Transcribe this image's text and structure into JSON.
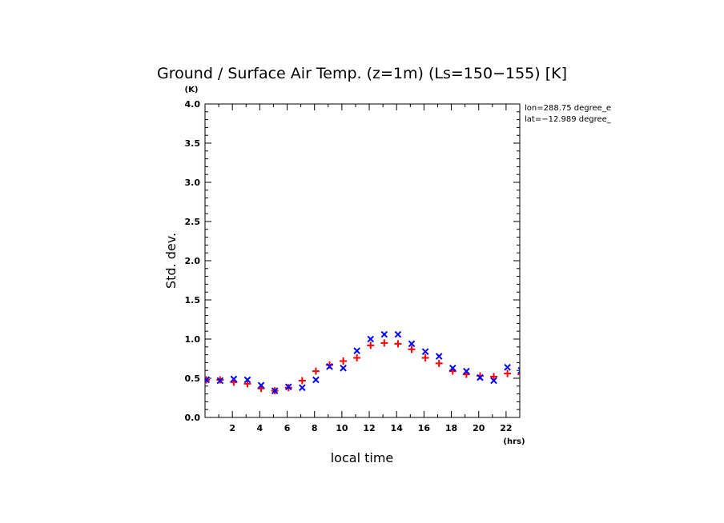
{
  "chart_data": {
    "type": "scatter",
    "title": "Ground / Surface Air Temp. (z=1m) (Ls=150−155) [K]",
    "xlabel": "local time",
    "xunit": "(hrs)",
    "ylabel": "Std. dev.",
    "yunit": "(K)",
    "xlim": [
      0,
      23
    ],
    "ylim": [
      0,
      4.0
    ],
    "x_ticks": [
      "2",
      "4",
      "6",
      "8",
      "10",
      "12",
      "14",
      "16",
      "18",
      "20",
      "22"
    ],
    "y_ticks": [
      "0.0",
      "0.5",
      "1.0",
      "1.5",
      "2.0",
      "2.5",
      "3.0",
      "3.5",
      "4.0"
    ],
    "annotations": [
      "lon=288.75 degree_e",
      "lat=−12.989 degree_"
    ],
    "series": [
      {
        "marker": "plus",
        "color": "#ff0000",
        "x": [
          0.1,
          1.1,
          2.1,
          3.1,
          4.1,
          5.1,
          6.1,
          7.1,
          8.1,
          9.1,
          10.1,
          11.1,
          12.1,
          13.1,
          14.1,
          15.1,
          16.1,
          17.1,
          18.1,
          19.1,
          20.1,
          21.1,
          22.1,
          23.1
        ],
        "y": [
          0.48,
          0.48,
          0.45,
          0.43,
          0.37,
          0.34,
          0.38,
          0.47,
          0.59,
          0.67,
          0.72,
          0.76,
          0.92,
          0.95,
          0.94,
          0.87,
          0.76,
          0.69,
          0.59,
          0.55,
          0.53,
          0.52,
          0.56,
          0.55
        ]
      },
      {
        "marker": "x",
        "color": "#0000ff",
        "x": [
          0.1,
          1.1,
          2.1,
          3.1,
          4.1,
          5.1,
          6.1,
          7.1,
          8.1,
          9.1,
          10.1,
          11.1,
          12.1,
          13.1,
          14.1,
          15.1,
          16.1,
          17.1,
          18.1,
          19.1,
          20.1,
          21.1,
          22.1,
          23.1
        ],
        "y": [
          0.48,
          0.47,
          0.49,
          0.48,
          0.41,
          0.34,
          0.39,
          0.38,
          0.48,
          0.65,
          0.63,
          0.85,
          1.0,
          1.06,
          1.06,
          0.94,
          0.84,
          0.78,
          0.63,
          0.59,
          0.51,
          0.47,
          0.64,
          0.6
        ]
      }
    ]
  }
}
